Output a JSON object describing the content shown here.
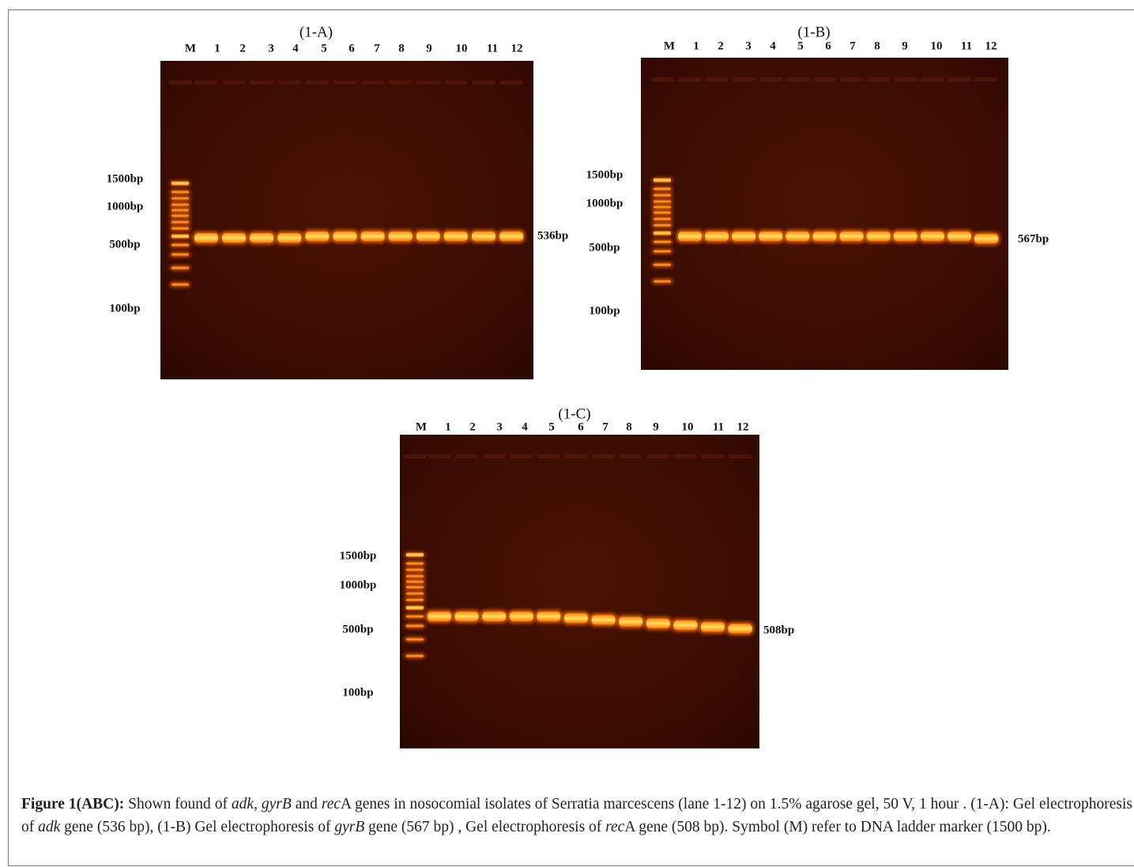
{
  "panels": [
    {
      "title": "(1-A)",
      "lanes": [
        "M",
        "1",
        "2",
        "3",
        "4",
        "5",
        "6",
        "7",
        "8",
        "9",
        "10",
        "11",
        "12"
      ],
      "markers": [
        "1500bp",
        "1000bp",
        "500bp",
        "100bp"
      ],
      "band_label": "536bp"
    },
    {
      "title": "(1-B)",
      "lanes": [
        "M",
        "1",
        "2",
        "3",
        "4",
        "5",
        "6",
        "7",
        "8",
        "9",
        "10",
        "11",
        "12"
      ],
      "markers": [
        "1500bp",
        "1000bp",
        "500bp",
        "100bp"
      ],
      "band_label": "567bp"
    },
    {
      "title": "(1-C)",
      "lanes": [
        "M",
        "1",
        "2",
        "3",
        "4",
        "5",
        "6",
        "7",
        "8",
        "9",
        "10",
        "11",
        "12"
      ],
      "markers": [
        "1500bp",
        "1000bp",
        "500bp",
        "100bp"
      ],
      "band_label": "508bp"
    }
  ],
  "caption": {
    "runs": [
      {
        "text": "Figure 1(ABC):",
        "style": "bold"
      },
      {
        "text": " Shown found of ",
        "style": "normal"
      },
      {
        "text": "adk",
        "style": "italic"
      },
      {
        "text": ", ",
        "style": "normal"
      },
      {
        "text": "gyrB",
        "style": "italic"
      },
      {
        "text": " and ",
        "style": "normal"
      },
      {
        "text": "rec",
        "style": "italic"
      },
      {
        "text": "A genes in nosocomial isolates of Serratia marcescens (lane 1-12) on 1.5% agarose gel, 50 V, 1 hour . (1-A): Gel electrophoresis of ",
        "style": "normal"
      },
      {
        "text": "adk",
        "style": "italic"
      },
      {
        "text": " gene (536 bp), (1-B) Gel electrophoresis of ",
        "style": "normal"
      },
      {
        "text": "gyrB",
        "style": "italic"
      },
      {
        "text": " gene (567 bp) , Gel electrophoresis of ",
        "style": "normal"
      },
      {
        "text": "rec",
        "style": "italic"
      },
      {
        "text": "A gene (508 bp). Symbol (M) refer to DNA ladder marker (1500 bp).",
        "style": "normal"
      }
    ]
  }
}
